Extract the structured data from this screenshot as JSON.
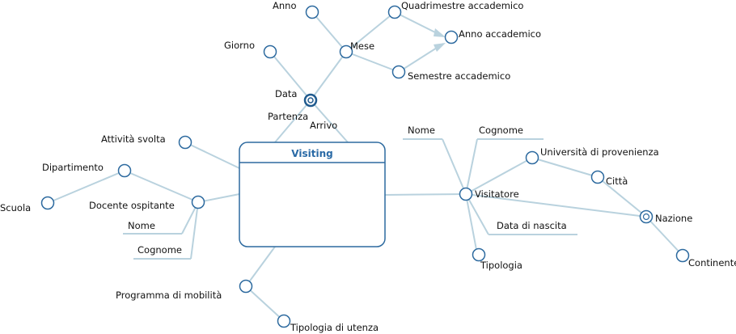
{
  "fact": {
    "name": "Visiting"
  },
  "labels": {
    "anno": "Anno",
    "quadrimestre": "Quadrimestre accademico",
    "anno_accademico": "Anno accademico",
    "giorno": "Giorno",
    "mese": "Mese",
    "semestre": "Semestre accademico",
    "data": "Data",
    "partenza": "Partenza",
    "arrivo": "Arrivo",
    "attivita": "Attività svolta",
    "dipartimento": "Dipartimento",
    "scuola": "Scuola",
    "docente": "Docente ospitante",
    "nome_docente": "Nome",
    "cognome_docente": "Cognome",
    "programma": "Programma di mobilità",
    "tipologia_utenza": "Tipologia di utenza",
    "nome_visitatore": "Nome",
    "cognome_visitatore": "Cognome",
    "universita": "Università di provenienza",
    "citta": "Città",
    "visitatore": "Visitatore",
    "nazione": "Nazione",
    "data_nascita": "Data di nascita",
    "tipologia": "Tipologia",
    "continente": "Continente"
  }
}
